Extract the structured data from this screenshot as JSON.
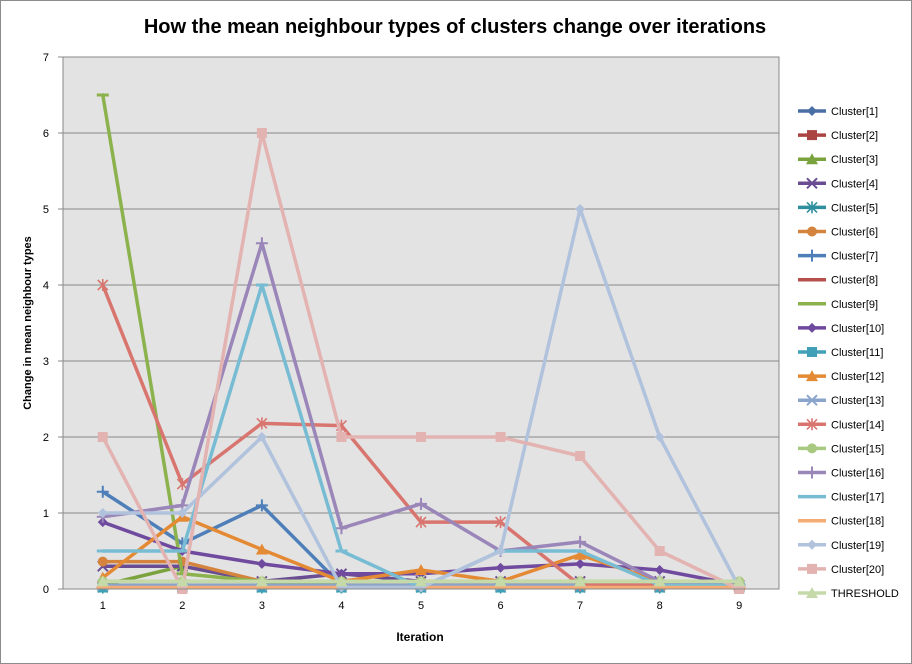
{
  "chart_data": {
    "type": "line",
    "title": "How the mean neighbour types of clusters change over iterations",
    "xlabel": "Iteration",
    "ylabel": "Change in mean neighbour types",
    "x": [
      1,
      2,
      3,
      4,
      5,
      6,
      7,
      8,
      9
    ],
    "ylim": [
      0,
      7
    ],
    "yticks": [
      0,
      1,
      2,
      3,
      4,
      5,
      6,
      7
    ],
    "grid": true,
    "legend_position": "right",
    "series": [
      {
        "name": "Cluster[1]",
        "color": "#4a6fa5",
        "marker": "diamond",
        "values": [
          0.05,
          0.05,
          0.05,
          0.05,
          0.05,
          0.05,
          0.05,
          0.05,
          0.05
        ]
      },
      {
        "name": "Cluster[2]",
        "color": "#a94442",
        "marker": "square",
        "values": [
          0.02,
          0.02,
          0.02,
          0.02,
          0.02,
          0.02,
          0.02,
          0.02,
          0.02
        ]
      },
      {
        "name": "Cluster[3]",
        "color": "#7aa33d",
        "marker": "triangle",
        "values": [
          0.05,
          0.3,
          0.1,
          0.05,
          0.05,
          0.05,
          0.05,
          0.05,
          0.05
        ]
      },
      {
        "name": "Cluster[4]",
        "color": "#6a4c93",
        "marker": "x",
        "values": [
          0.3,
          0.3,
          0.1,
          0.2,
          0.1,
          0.1,
          0.1,
          0.1,
          0.05
        ]
      },
      {
        "name": "Cluster[5]",
        "color": "#2e8f9e",
        "marker": "star",
        "values": [
          0.02,
          0.02,
          0.02,
          0.02,
          0.02,
          0.02,
          0.02,
          0.02,
          0.02
        ]
      },
      {
        "name": "Cluster[6]",
        "color": "#d4843c",
        "marker": "circle",
        "values": [
          0.36,
          0.36,
          0.1,
          0.1,
          0.1,
          0.1,
          0.1,
          0.1,
          0.05
        ]
      },
      {
        "name": "Cluster[7]",
        "color": "#4e7fb8",
        "marker": "plus",
        "values": [
          1.28,
          0.6,
          1.1,
          0.05,
          0.05,
          0.05,
          0.05,
          0.05,
          0.05
        ]
      },
      {
        "name": "Cluster[8]",
        "color": "#b5504c",
        "marker": "dash",
        "values": [
          0.02,
          0.02,
          0.02,
          0.02,
          0.02,
          0.02,
          0.02,
          0.02,
          0.02
        ]
      },
      {
        "name": "Cluster[9]",
        "color": "#8cb24d",
        "marker": "dash",
        "values": [
          6.5,
          0.2,
          0.1,
          0.05,
          0.05,
          0.05,
          0.05,
          0.05,
          0.05
        ]
      },
      {
        "name": "Cluster[10]",
        "color": "#6f4a9e",
        "marker": "diamond",
        "values": [
          0.88,
          0.5,
          0.33,
          0.2,
          0.2,
          0.28,
          0.33,
          0.25,
          0.05
        ]
      },
      {
        "name": "Cluster[11]",
        "color": "#3fa0b8",
        "marker": "square",
        "values": [
          0.02,
          0.02,
          0.02,
          0.02,
          0.02,
          0.02,
          0.02,
          0.02,
          0.02
        ]
      },
      {
        "name": "Cluster[12]",
        "color": "#e48a35",
        "marker": "triangle",
        "values": [
          0.15,
          0.95,
          0.52,
          0.1,
          0.25,
          0.1,
          0.45,
          0.1,
          0.05
        ]
      },
      {
        "name": "Cluster[13]",
        "color": "#8aa4cc",
        "marker": "x",
        "values": [
          0.05,
          0.05,
          0.05,
          0.05,
          0.05,
          0.05,
          0.05,
          0.05,
          0.05
        ]
      },
      {
        "name": "Cluster[14]",
        "color": "#d9756f",
        "marker": "star",
        "values": [
          4.0,
          1.38,
          2.18,
          2.15,
          0.88,
          0.88,
          0.05,
          0.05,
          0.05
        ]
      },
      {
        "name": "Cluster[15]",
        "color": "#a8c97f",
        "marker": "circle",
        "values": [
          0.1,
          0.1,
          0.1,
          0.1,
          0.1,
          0.1,
          0.1,
          0.1,
          0.1
        ]
      },
      {
        "name": "Cluster[16]",
        "color": "#9a86b8",
        "marker": "plus",
        "values": [
          0.95,
          1.1,
          4.55,
          0.8,
          1.12,
          0.5,
          0.62,
          0.1,
          0.05
        ]
      },
      {
        "name": "Cluster[17]",
        "color": "#78bcd4",
        "marker": "dash",
        "values": [
          0.5,
          0.5,
          4.0,
          0.5,
          0.02,
          0.5,
          0.5,
          0.05,
          0.05
        ]
      },
      {
        "name": "Cluster[18]",
        "color": "#f5ab74",
        "marker": "dash",
        "values": [
          0.02,
          0.02,
          0.02,
          0.02,
          0.02,
          0.02,
          0.02,
          0.02,
          0.02
        ]
      },
      {
        "name": "Cluster[19]",
        "color": "#b1c2dd",
        "marker": "diamond",
        "values": [
          1.0,
          1.0,
          2.0,
          0.02,
          0.02,
          0.5,
          5.0,
          2.0,
          0.02
        ]
      },
      {
        "name": "Cluster[20]",
        "color": "#e3b3b1",
        "marker": "square",
        "values": [
          2.0,
          0.0,
          6.0,
          2.0,
          2.0,
          2.0,
          1.75,
          0.5,
          0.0
        ]
      },
      {
        "name": "THRESHOLD",
        "color": "#c6d9a8",
        "marker": "triangle",
        "values": [
          0.1,
          0.1,
          0.1,
          0.1,
          0.1,
          0.1,
          0.1,
          0.1,
          0.1
        ]
      }
    ]
  }
}
